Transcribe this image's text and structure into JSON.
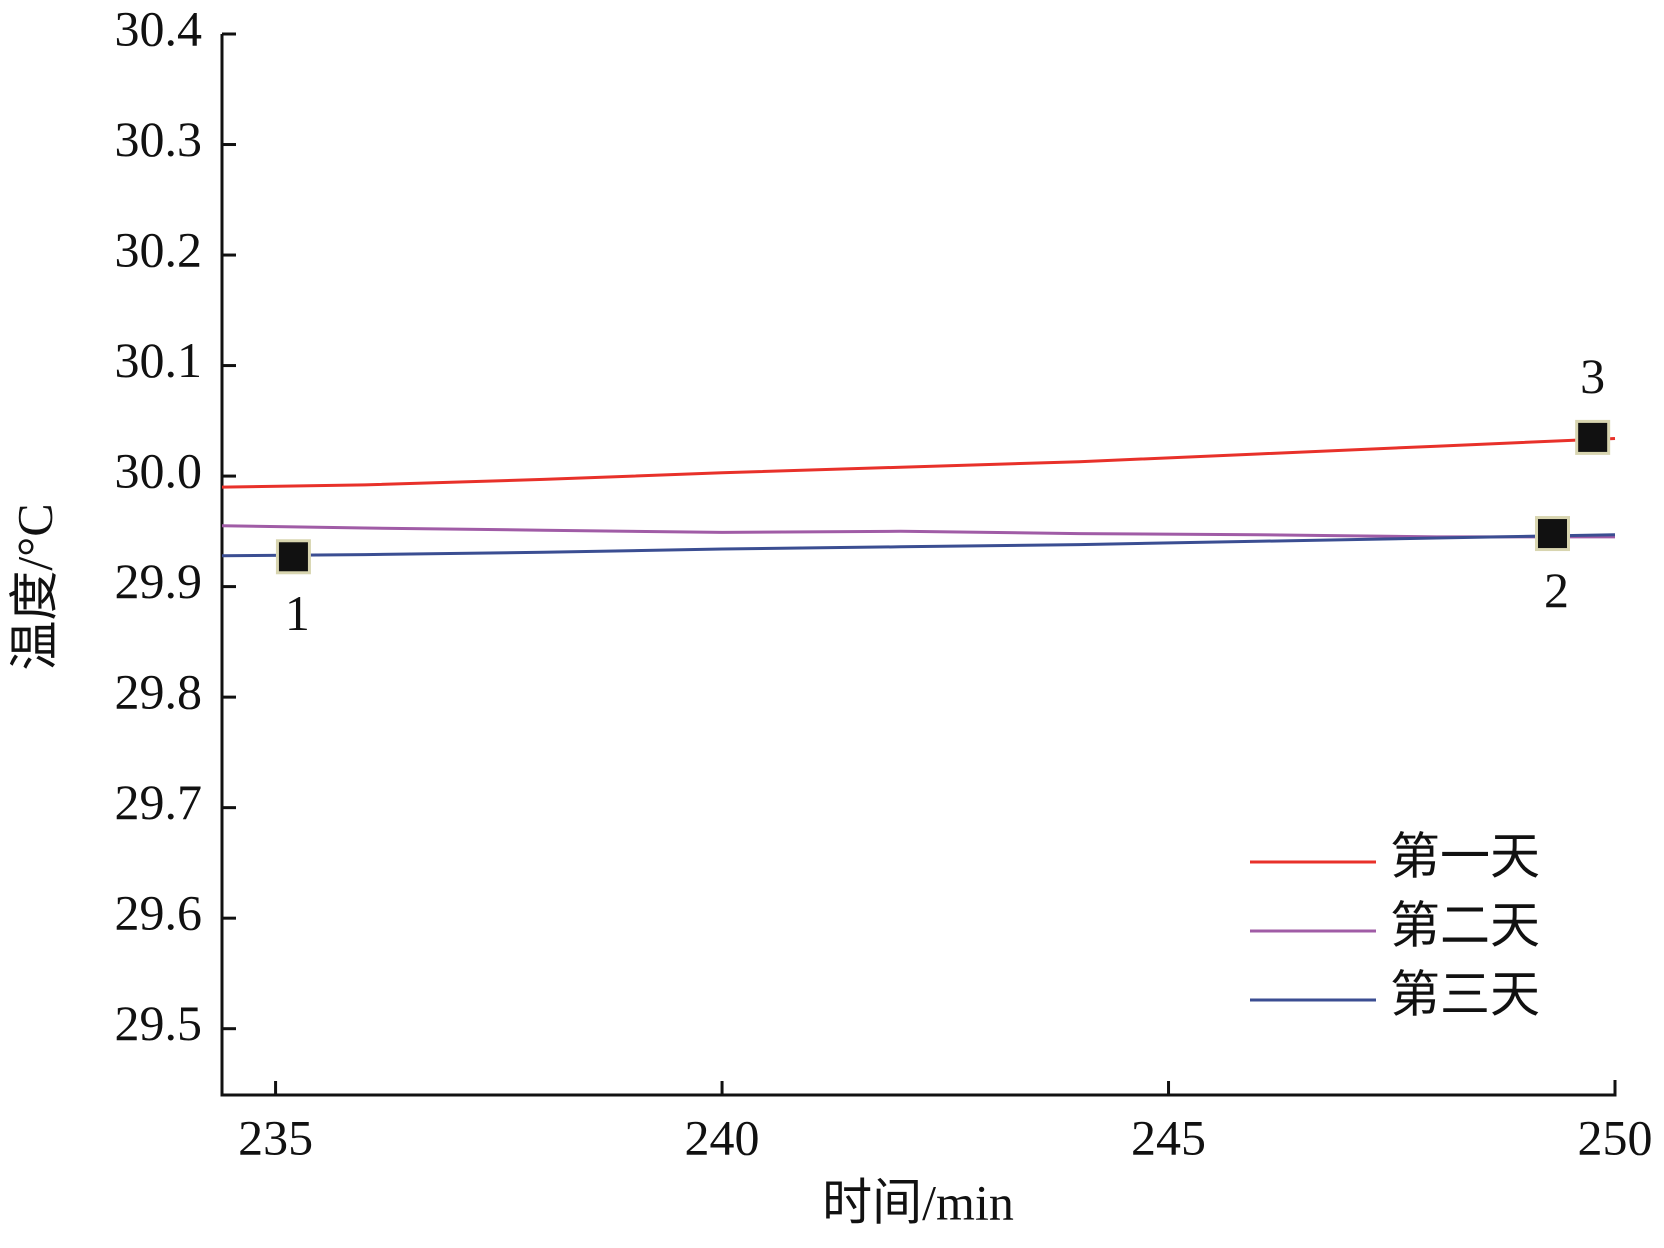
{
  "chart_data": {
    "type": "line",
    "xlabel": "时间/min",
    "ylabel": "温度/°C",
    "x": [
      234.4,
      236,
      238,
      240,
      242,
      244,
      246,
      248,
      250
    ],
    "series": [
      {
        "name": "第一天",
        "color": "#e8312a",
        "values": [
          29.99,
          29.992,
          29.997,
          30.003,
          30.008,
          30.013,
          30.02,
          30.027,
          30.034
        ]
      },
      {
        "name": "第二天",
        "color": "#a05ca6",
        "values": [
          29.955,
          29.953,
          29.951,
          29.949,
          29.95,
          29.948,
          29.947,
          29.945,
          29.945
        ]
      },
      {
        "name": "第三天",
        "color": "#3b4e92",
        "values": [
          29.928,
          29.929,
          29.931,
          29.934,
          29.936,
          29.938,
          29.941,
          29.944,
          29.947
        ]
      }
    ],
    "annotations": [
      {
        "label": "1",
        "x": 235.2,
        "y": 29.927,
        "label_position": "below"
      },
      {
        "label": "2",
        "x": 249.3,
        "y": 29.948,
        "label_position": "below"
      },
      {
        "label": "3",
        "x": 249.75,
        "y": 30.035,
        "label_position": "above"
      }
    ],
    "xlim": [
      234.4,
      250
    ],
    "xticks": [
      235,
      240,
      245,
      250
    ],
    "ylim": [
      29.44,
      30.4
    ],
    "yticks": [
      29.5,
      29.6,
      29.7,
      29.8,
      29.9,
      {
        "value": 30,
        "label": "30.0"
      },
      30.1,
      30.2,
      30.3,
      30.4
    ],
    "legend": "lower right"
  }
}
